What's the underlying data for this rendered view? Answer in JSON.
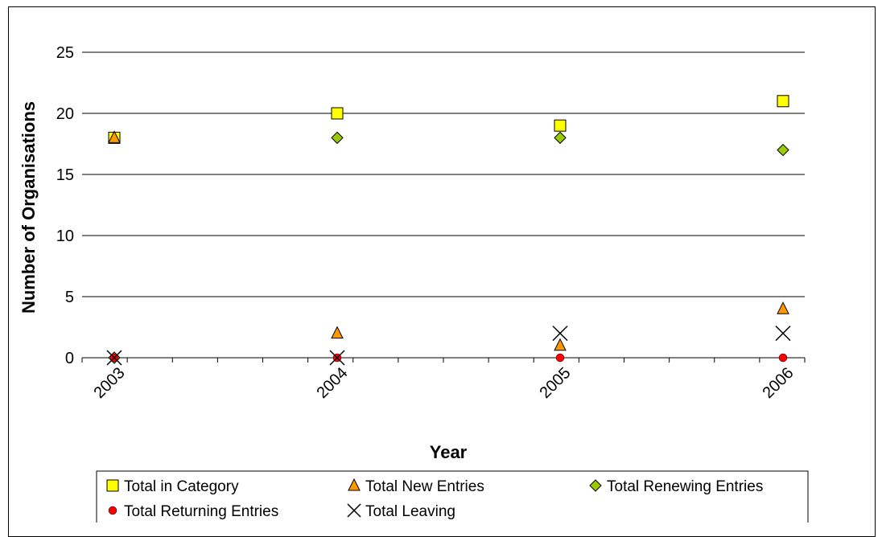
{
  "chart_data": {
    "type": "scatter",
    "title": "",
    "xlabel": "Year",
    "ylabel": "Number of Organisations",
    "categories": [
      "2003",
      "2004",
      "2005",
      "2006"
    ],
    "ylim": [
      0,
      25
    ],
    "yticks": [
      0,
      5,
      10,
      15,
      20,
      25
    ],
    "grid": "horizontal",
    "legend_position": "bottom",
    "series": [
      {
        "name": "Total in Category",
        "marker": "square",
        "color": "#ffff00",
        "values": [
          18,
          20,
          19,
          21
        ]
      },
      {
        "name": "Total New Entries",
        "marker": "triangle",
        "color": "#ff9900",
        "values": [
          18,
          2,
          1,
          4
        ]
      },
      {
        "name": "Total Renewing Entries",
        "marker": "diamond",
        "color": "#99cc00",
        "values": [
          0,
          18,
          18,
          17
        ]
      },
      {
        "name": "Total Returning Entries",
        "marker": "circle",
        "color": "#ff0000",
        "values": [
          0,
          0,
          0,
          0
        ]
      },
      {
        "name": "Total Leaving",
        "marker": "x",
        "color": "#000000",
        "values": [
          0,
          0,
          2,
          2
        ]
      }
    ]
  }
}
